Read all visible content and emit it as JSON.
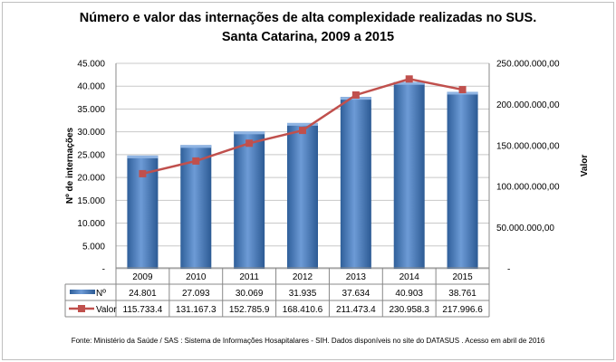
{
  "chart_data": {
    "type": "bar+line",
    "title": "Número e valor das internações de alta complexidade realizadas no SUS.",
    "subtitle": "Santa Catarina, 2009 a 2015",
    "categories": [
      "2009",
      "2010",
      "2011",
      "2012",
      "2013",
      "2014",
      "2015"
    ],
    "series": [
      {
        "name": "Nº",
        "type": "bar",
        "axis": "left",
        "values": [
          24801,
          27093,
          30069,
          31935,
          37634,
          40903,
          38761
        ],
        "labels": [
          "24.801",
          "27.093",
          "30.069",
          "31.935",
          "37.634",
          "40.903",
          "38.761"
        ],
        "color": "#4F81BD"
      },
      {
        "name": "Valor",
        "type": "line",
        "axis": "right",
        "values": [
          115733400,
          131167300,
          152785900,
          168410600,
          211473400,
          230958300,
          217996600
        ],
        "labels": [
          "115.733.4",
          "131.167.3",
          "152.785.9",
          "168.410.6",
          "211.473.4",
          "230.958.3",
          "217.996.6"
        ],
        "color": "#C0504D"
      }
    ],
    "ylabel": "Nº de internações",
    "ylim": [
      0,
      45000
    ],
    "yticks": [
      "-",
      "5.000",
      "10.000",
      "15.000",
      "20.000",
      "25.000",
      "30.000",
      "35.000",
      "40.000",
      "45.000"
    ],
    "y2label": "Valor",
    "y2lim": [
      0,
      250000000
    ],
    "y2ticks": [
      "-",
      "50.000.000,00",
      "100.000.000,00",
      "150.000.000,00",
      "200.000.000,00",
      "250.000.000,00"
    ],
    "grid": true,
    "legend": "data-table"
  },
  "source": "Fonte:  Ministério da Saúde / SAS : Sistema de Informações Hosapitalares - SIH. Dados disponíveis no site do DATASUS . Acesso em abril de 2016"
}
